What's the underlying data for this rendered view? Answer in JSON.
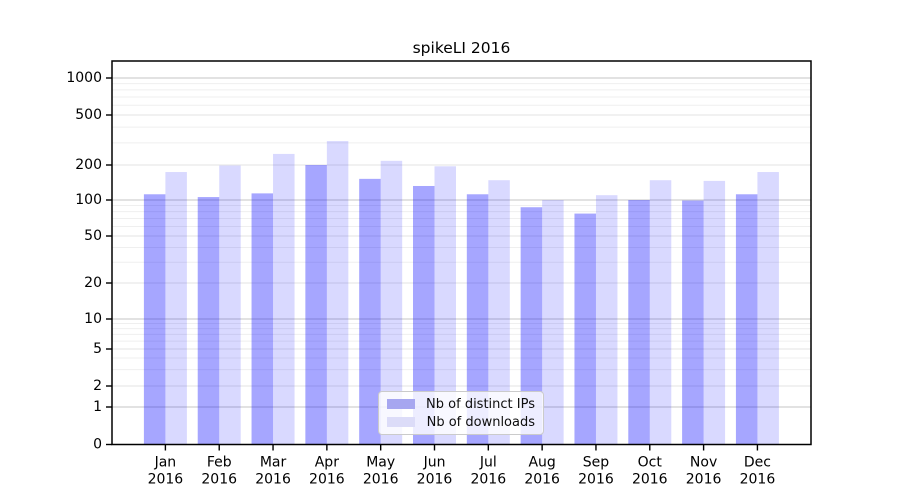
{
  "figure": {
    "title": "spikeLI 2016",
    "background": "#ffffff"
  },
  "chart_data": {
    "type": "bar",
    "title": "spikeLI 2016",
    "categories": [
      "Jan 2016",
      "Feb 2016",
      "Mar 2016",
      "Apr 2016",
      "May 2016",
      "Jun 2016",
      "Jul 2016",
      "Aug 2016",
      "Sep 2016",
      "Oct 2016",
      "Nov 2016",
      "Dec 2016"
    ],
    "series": [
      {
        "key": "distinct-ips",
        "name": "Nb of distinct IPs",
        "color": "#a6a6f0",
        "fill": "rgba(0,0,255,0.35)",
        "values": [
          112,
          106,
          114,
          200,
          152,
          132,
          112,
          87,
          77,
          100,
          99,
          112
        ]
      },
      {
        "key": "downloads",
        "name": "Nb of downloads",
        "color": "#dcdcf8",
        "fill": "rgba(0,0,255,0.15)",
        "values": [
          174,
          198,
          245,
          310,
          216,
          195,
          148,
          100,
          110,
          148,
          146,
          174
        ]
      }
    ],
    "y_axis": {
      "scale": "symlog",
      "ticks": [
        0,
        1,
        2,
        5,
        10,
        20,
        50,
        100,
        200,
        500,
        1000
      ],
      "minor_gridlines": [
        3,
        4,
        6,
        7,
        8,
        9,
        30,
        40,
        60,
        70,
        80,
        90,
        300,
        400,
        600,
        700,
        800,
        900
      ],
      "range": [
        0,
        1400
      ],
      "grid": true
    },
    "legend": {
      "position": "lower-center",
      "entries": [
        "Nb of distinct IPs",
        "Nb of downloads"
      ]
    }
  },
  "colors": {
    "axis": "#000000",
    "text": "#000000",
    "major_grid": "#c6c6c6",
    "labeled_grid": "#e3e3e3",
    "minor_grid": "#efefef"
  }
}
